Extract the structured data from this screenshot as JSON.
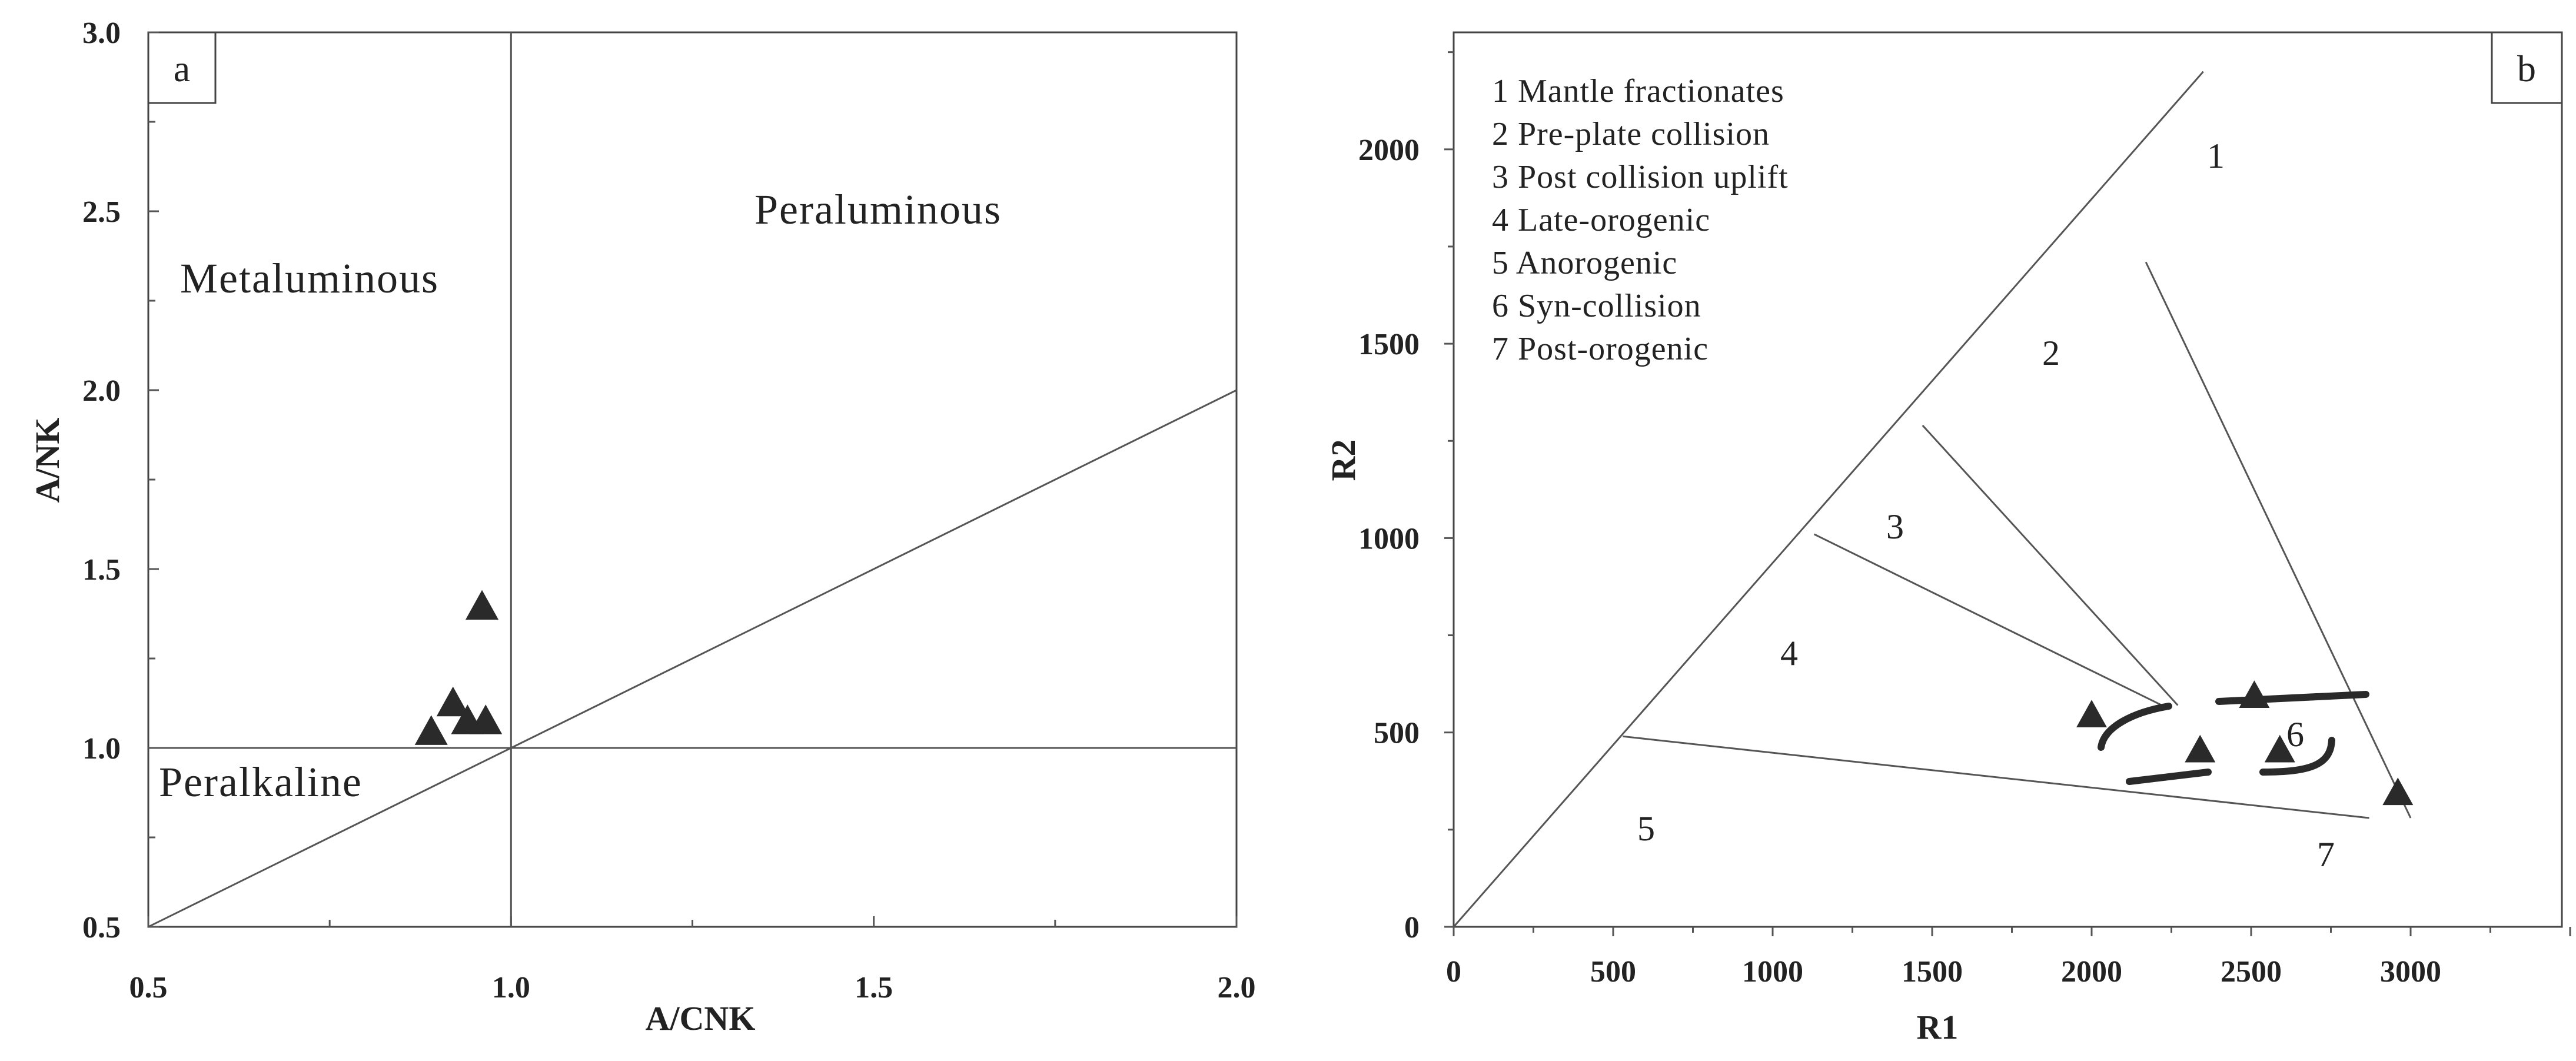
{
  "chart_data": [
    {
      "type": "scatter",
      "panel_label": "a",
      "xlabel": "A/CNK",
      "ylabel": "A/NK",
      "xlim": [
        0.5,
        2.0
      ],
      "ylim": [
        0.5,
        3.0
      ],
      "x_ticks": [
        "0.5",
        "1.0",
        "1.5",
        "2.0"
      ],
      "y_ticks": [
        "0.5",
        "1.0",
        "1.5",
        "2.0",
        "2.5",
        "3.0"
      ],
      "region_labels": [
        "Metaluminous",
        "Peraluminous",
        "Peralkaline"
      ],
      "boundaries": [
        {
          "from": [
            1.0,
            0.5
          ],
          "to": [
            1.0,
            3.0
          ]
        },
        {
          "from": [
            0.5,
            1.0
          ],
          "to": [
            2.0,
            1.0
          ]
        },
        {
          "from": [
            0.5,
            0.5
          ],
          "to": [
            2.0,
            2.0
          ]
        }
      ],
      "points": [
        {
          "x": 0.89,
          "y": 1.04
        },
        {
          "x": 0.92,
          "y": 1.12
        },
        {
          "x": 0.94,
          "y": 1.07
        },
        {
          "x": 0.96,
          "y": 1.39
        },
        {
          "x": 0.965,
          "y": 1.07
        }
      ],
      "marker": "triangle",
      "grid": false
    },
    {
      "type": "scatter",
      "panel_label": "b",
      "xlabel": "R1",
      "ylabel": "R2",
      "xlim": [
        0,
        3500
      ],
      "ylim": [
        0,
        2300
      ],
      "x_ticks": [
        "0",
        "500",
        "1000",
        "1500",
        "2000",
        "2500",
        "3000"
      ],
      "y_ticks": [
        "0",
        "500",
        "1000",
        "1500",
        "2000"
      ],
      "legend": [
        "1 Mantle fractionates",
        "2 Pre-plate collision",
        "3 Post collision uplift",
        "4 Late-orogenic",
        "5 Anorogenic",
        "6 Syn-collision",
        "7 Post-orogenic"
      ],
      "region_numbers": [
        "1",
        "2",
        "3",
        "4",
        "5",
        "6",
        "7"
      ],
      "boundaries": [
        {
          "from": [
            0,
            0
          ],
          "to": [
            2350,
            2200
          ]
        },
        {
          "from": [
            2170,
            1710
          ],
          "to": [
            3000,
            280
          ]
        },
        {
          "from": [
            1470,
            1290
          ],
          "to": [
            2270,
            570
          ]
        },
        {
          "from": [
            1130,
            1010
          ],
          "to": [
            2220,
            570
          ]
        },
        {
          "from": [
            530,
            490
          ],
          "to": [
            2870,
            280
          ]
        }
      ],
      "points": [
        {
          "x": 2000,
          "y": 540
        },
        {
          "x": 2340,
          "y": 450
        },
        {
          "x": 2510,
          "y": 590
        },
        {
          "x": 2590,
          "y": 450
        },
        {
          "x": 2960,
          "y": 340
        }
      ],
      "marker": "triangle",
      "grid": false
    }
  ]
}
